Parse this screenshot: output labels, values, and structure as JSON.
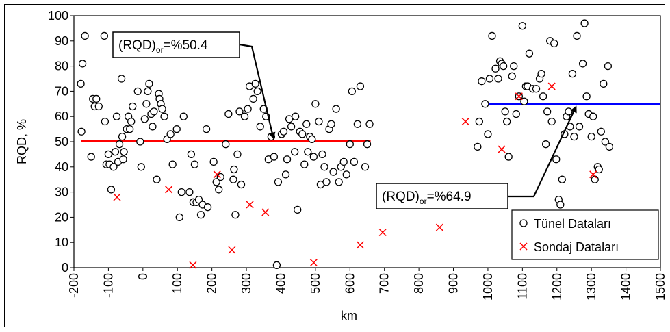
{
  "chart_data": {
    "type": "scatter",
    "title": "",
    "xlabel": "km",
    "ylabel": "RQD, %",
    "xlim": [
      -200,
      1500
    ],
    "ylim": [
      0,
      100
    ],
    "xticks": [
      "-200",
      "-100",
      "0",
      "100",
      "200",
      "300",
      "400",
      "500",
      "600",
      "700",
      "800",
      "900",
      "1000",
      "1100",
      "1200",
      "1300",
      "1400",
      "1500"
    ],
    "yticks": [
      "0",
      "10",
      "20",
      "30",
      "40",
      "50",
      "60",
      "70",
      "80",
      "90",
      "100"
    ],
    "grid": "none",
    "legend_position": "bottom-right",
    "series": [
      {
        "name": "Tünel Dataları",
        "marker": "circle",
        "color": "#000000",
        "points": [
          [
            -180,
            73
          ],
          [
            -178,
            54
          ],
          [
            -175,
            81
          ],
          [
            -168,
            92
          ],
          [
            -150,
            44
          ],
          [
            -145,
            67
          ],
          [
            -140,
            64
          ],
          [
            -135,
            67
          ],
          [
            -128,
            64
          ],
          [
            -112,
            92
          ],
          [
            -110,
            58
          ],
          [
            -106,
            41
          ],
          [
            -100,
            45
          ],
          [
            -97,
            41
          ],
          [
            -92,
            31
          ],
          [
            -85,
            40
          ],
          [
            -80,
            46
          ],
          [
            -76,
            60
          ],
          [
            -72,
            42
          ],
          [
            -68,
            49
          ],
          [
            -62,
            75
          ],
          [
            -60,
            52
          ],
          [
            -57,
            43
          ],
          [
            -55,
            46
          ],
          [
            -47,
            55
          ],
          [
            -42,
            60
          ],
          [
            -38,
            55
          ],
          [
            -34,
            58
          ],
          [
            -30,
            64
          ],
          [
            -15,
            70
          ],
          [
            -8,
            50
          ],
          [
            -5,
            40
          ],
          [
            5,
            59
          ],
          [
            10,
            65
          ],
          [
            14,
            70
          ],
          [
            18,
            73
          ],
          [
            24,
            61
          ],
          [
            28,
            56
          ],
          [
            32,
            62
          ],
          [
            40,
            35
          ],
          [
            46,
            69
          ],
          [
            48,
            67
          ],
          [
            52,
            65
          ],
          [
            56,
            63
          ],
          [
            62,
            60
          ],
          [
            70,
            51
          ],
          [
            80,
            53
          ],
          [
            86,
            41
          ],
          [
            98,
            55
          ],
          [
            106,
            20
          ],
          [
            112,
            30
          ],
          [
            118,
            60
          ],
          [
            135,
            30
          ],
          [
            140,
            45
          ],
          [
            146,
            26
          ],
          [
            150,
            41
          ],
          [
            155,
            26
          ],
          [
            162,
            27
          ],
          [
            168,
            21
          ],
          [
            173,
            25
          ],
          [
            184,
            55
          ],
          [
            188,
            24
          ],
          [
            205,
            42
          ],
          [
            213,
            34
          ],
          [
            220,
            31
          ],
          [
            225,
            36
          ],
          [
            240,
            49
          ],
          [
            248,
            61
          ],
          [
            262,
            35
          ],
          [
            264,
            39
          ],
          [
            268,
            21
          ],
          [
            274,
            45
          ],
          [
            280,
            62
          ],
          [
            285,
            33
          ],
          [
            295,
            60
          ],
          [
            304,
            63
          ],
          [
            309,
            72
          ],
          [
            320,
            67
          ],
          [
            326,
            73
          ],
          [
            332,
            70
          ],
          [
            340,
            56
          ],
          [
            350,
            63
          ],
          [
            357,
            60
          ],
          [
            364,
            43
          ],
          [
            372,
            52
          ],
          [
            380,
            44
          ],
          [
            388,
            1
          ],
          [
            392,
            34
          ],
          [
            402,
            53
          ],
          [
            408,
            54
          ],
          [
            414,
            37
          ],
          [
            418,
            43
          ],
          [
            424,
            59
          ],
          [
            430,
            56
          ],
          [
            440,
            46
          ],
          [
            442,
            60
          ],
          [
            448,
            23
          ],
          [
            455,
            54
          ],
          [
            462,
            53
          ],
          [
            468,
            41
          ],
          [
            474,
            57
          ],
          [
            478,
            46
          ],
          [
            484,
            52
          ],
          [
            490,
            51
          ],
          [
            495,
            44
          ],
          [
            500,
            65
          ],
          [
            510,
            58
          ],
          [
            515,
            33
          ],
          [
            520,
            45
          ],
          [
            526,
            40
          ],
          [
            532,
            34
          ],
          [
            540,
            55
          ],
          [
            546,
            57
          ],
          [
            552,
            38
          ],
          [
            560,
            63
          ],
          [
            568,
            34
          ],
          [
            574,
            40
          ],
          [
            582,
            42
          ],
          [
            590,
            37
          ],
          [
            600,
            49
          ],
          [
            606,
            70
          ],
          [
            612,
            42
          ],
          [
            622,
            57
          ],
          [
            630,
            72
          ],
          [
            644,
            40
          ],
          [
            650,
            49
          ],
          [
            657,
            57
          ],
          [
            970,
            48
          ],
          [
            975,
            58
          ],
          [
            982,
            74
          ],
          [
            992,
            65
          ],
          [
            1000,
            53
          ],
          [
            1005,
            75
          ],
          [
            1012,
            92
          ],
          [
            1022,
            79
          ],
          [
            1030,
            75
          ],
          [
            1035,
            82
          ],
          [
            1040,
            81
          ],
          [
            1045,
            80
          ],
          [
            1050,
            62
          ],
          [
            1055,
            58
          ],
          [
            1060,
            44
          ],
          [
            1070,
            76
          ],
          [
            1075,
            80
          ],
          [
            1082,
            61
          ],
          [
            1090,
            68
          ],
          [
            1100,
            96
          ],
          [
            1105,
            66
          ],
          [
            1110,
            72
          ],
          [
            1115,
            72
          ],
          [
            1120,
            85
          ],
          [
            1130,
            71
          ],
          [
            1140,
            71
          ],
          [
            1150,
            75
          ],
          [
            1155,
            77
          ],
          [
            1160,
            68
          ],
          [
            1168,
            49
          ],
          [
            1172,
            62
          ],
          [
            1180,
            90
          ],
          [
            1185,
            58
          ],
          [
            1192,
            89
          ],
          [
            1198,
            43
          ],
          [
            1205,
            27
          ],
          [
            1210,
            25
          ],
          [
            1215,
            35
          ],
          [
            1222,
            53
          ],
          [
            1228,
            60
          ],
          [
            1234,
            62
          ],
          [
            1238,
            56
          ],
          [
            1245,
            77
          ],
          [
            1250,
            52
          ],
          [
            1258,
            92
          ],
          [
            1265,
            56
          ],
          [
            1275,
            81
          ],
          [
            1280,
            97
          ],
          [
            1286,
            68
          ],
          [
            1292,
            61
          ],
          [
            1300,
            52
          ],
          [
            1305,
            60
          ],
          [
            1310,
            35
          ],
          [
            1318,
            40
          ],
          [
            1322,
            39
          ],
          [
            1328,
            54
          ],
          [
            1335,
            73
          ],
          [
            1340,
            50
          ],
          [
            1348,
            80
          ],
          [
            1352,
            48
          ]
        ]
      },
      {
        "name": "Sondaj Dataları",
        "marker": "x",
        "color": "#ff0000",
        "points": [
          [
            -75,
            28
          ],
          [
            75,
            31
          ],
          [
            145,
            1
          ],
          [
            215,
            37
          ],
          [
            258,
            7
          ],
          [
            310,
            25
          ],
          [
            355,
            22
          ],
          [
            495,
            2
          ],
          [
            630,
            9
          ],
          [
            695,
            14
          ],
          [
            860,
            16
          ],
          [
            935,
            58
          ],
          [
            1040,
            47
          ],
          [
            1090,
            68
          ],
          [
            1185,
            72
          ],
          [
            1305,
            37
          ]
        ]
      }
    ],
    "reference_lines": [
      {
        "color": "#ff0000",
        "y": 50.4,
        "x_range": [
          -180,
          660
        ]
      },
      {
        "color": "#0000ff",
        "y": 64.9,
        "x_range": [
          985,
          1500
        ]
      }
    ],
    "annotations": [
      {
        "text_main": "(RQD)",
        "text_sub": "or",
        "text_rest": "=%50.4",
        "arrow_to": [
          378,
          50.4
        ]
      },
      {
        "text_main": "(RQD)",
        "text_sub": "or",
        "text_rest": "=%64.9",
        "arrow_to": [
          1255,
          64.9
        ]
      }
    ]
  }
}
